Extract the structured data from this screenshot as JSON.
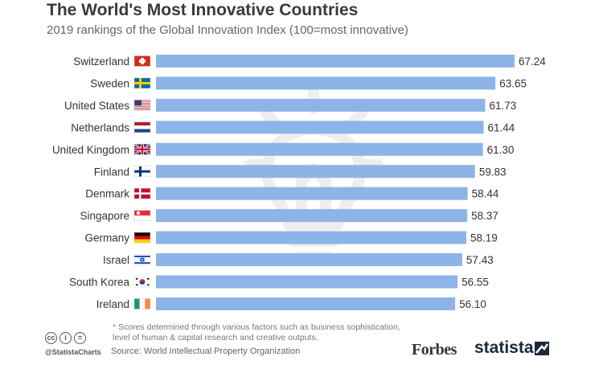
{
  "header": {
    "title": "The World's Most Innovative Countries",
    "subtitle": "2019 rankings of the Global Innovation Index (100=most innovative)"
  },
  "colors": {
    "bar": "#8db4e6",
    "text": "#333333"
  },
  "chart_data": {
    "type": "bar",
    "orientation": "horizontal",
    "title": "The World's Most Innovative Countries",
    "subtitle": "2019 rankings of the Global Innovation Index (100=most innovative)",
    "categories": [
      "Switzerland",
      "Sweden",
      "United States",
      "Netherlands",
      "United Kingdom",
      "Finland",
      "Denmark",
      "Singapore",
      "Germany",
      "Israel",
      "South Korea",
      "Ireland"
    ],
    "values": [
      67.24,
      63.65,
      61.73,
      61.44,
      61.3,
      59.83,
      58.44,
      58.37,
      58.19,
      57.43,
      56.55,
      56.1
    ],
    "value_labels": [
      "67.24",
      "63.65",
      "61.73",
      "61.44",
      "61.30",
      "59.83",
      "58.44",
      "58.37",
      "58.19",
      "57.43",
      "56.55",
      "56.10"
    ],
    "flags": [
      "switzerland-flag",
      "sweden-flag",
      "usa-flag",
      "netherlands-flag",
      "uk-flag",
      "finland-flag",
      "denmark-flag",
      "singapore-flag",
      "germany-flag",
      "israel-flag",
      "south-korea-flag",
      "ireland-flag"
    ],
    "xlabel": "",
    "ylabel": "",
    "xlim": [
      0,
      67.24
    ],
    "grid": false,
    "legend": "none"
  },
  "footer": {
    "note": "* Scores determined through various factors such as business sophistication, level of human & capital research and creative outputs.",
    "source": "Source: World Intellectual Property Organization",
    "handle": "@StatistaCharts",
    "forbes": "Forbes",
    "statista": "statista"
  },
  "icons": [
    "lightbulb-icon",
    "creative-commons-icon",
    "attribution-icon",
    "no-derivatives-icon"
  ]
}
